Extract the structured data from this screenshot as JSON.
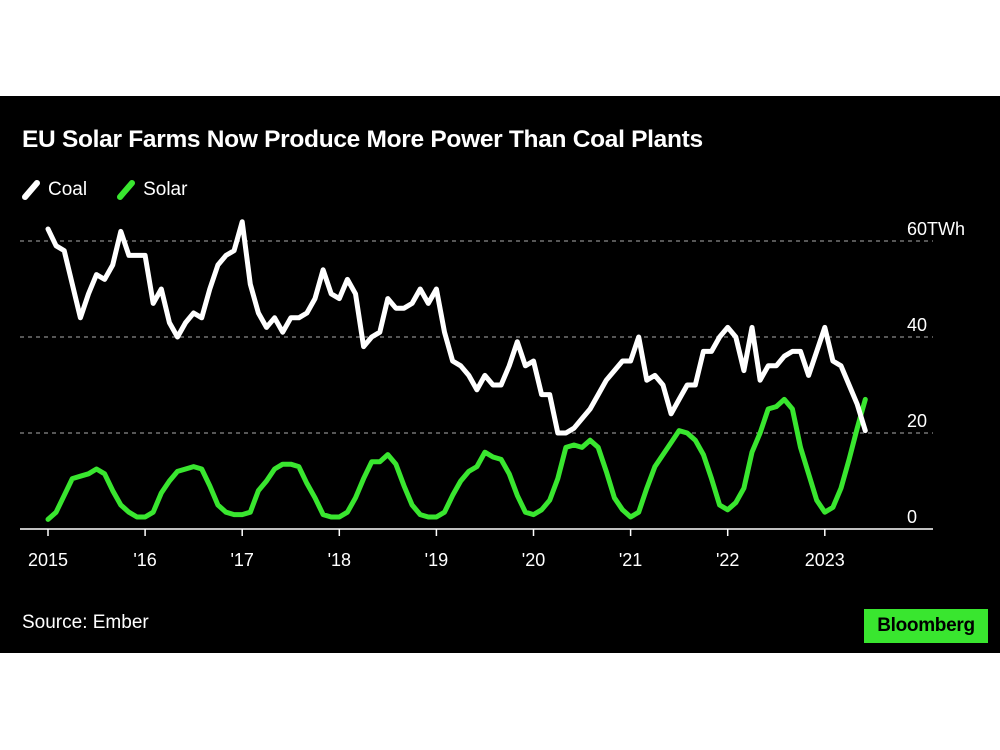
{
  "chart_data": {
    "type": "line",
    "title": "EU Solar Farms Now Produce More Power Than Coal Plants",
    "source": "Source: Ember",
    "brand": "Bloomberg",
    "unit": "TWh",
    "ylim": [
      0,
      60
    ],
    "yticks": [
      {
        "value": 0,
        "label": "0"
      },
      {
        "value": 20,
        "label": "20"
      },
      {
        "value": 40,
        "label": "40"
      },
      {
        "value": 60,
        "label": "60"
      }
    ],
    "xticks": [
      {
        "value": 2015,
        "label": "2015"
      },
      {
        "value": 2016,
        "label": "'16"
      },
      {
        "value": 2017,
        "label": "'17"
      },
      {
        "value": 2018,
        "label": "'18"
      },
      {
        "value": 2019,
        "label": "'19"
      },
      {
        "value": 2020,
        "label": "'20"
      },
      {
        "value": 2021,
        "label": "'21"
      },
      {
        "value": 2022,
        "label": "'22"
      },
      {
        "value": 2023,
        "label": "2023"
      }
    ],
    "grid": true,
    "legend_position": "top-left",
    "x_start": "2015-01",
    "x_step": "month",
    "series": [
      {
        "name": "Coal",
        "color": "#ffffff",
        "values": [
          62.5,
          59,
          58,
          51,
          44,
          49,
          53,
          52,
          55,
          62,
          57,
          57,
          57,
          47,
          50,
          43,
          40,
          43,
          45,
          44,
          50,
          55,
          57,
          58,
          64,
          51,
          45,
          42,
          44,
          41,
          44,
          44,
          45,
          48,
          54,
          49,
          48,
          52,
          49,
          38,
          40,
          41,
          48,
          46,
          46,
          47,
          50,
          47,
          50,
          41,
          35,
          34,
          32,
          29,
          32,
          30,
          30,
          34,
          39,
          34,
          35,
          28,
          28,
          20,
          20,
          21,
          23,
          25,
          28,
          31,
          33,
          35,
          35,
          40,
          31,
          32,
          30,
          24,
          27,
          30,
          30,
          37,
          37,
          40,
          42,
          40,
          33,
          42,
          31,
          34,
          34,
          36,
          37,
          37,
          32,
          37,
          42,
          35,
          34,
          30,
          26,
          20.5
        ]
      },
      {
        "name": "Solar",
        "color": "#39e62f",
        "values": [
          2,
          3.5,
          7,
          10.5,
          11,
          11.5,
          12.5,
          11.5,
          8,
          5,
          3.5,
          2.5,
          2.5,
          3.5,
          7.5,
          10,
          12,
          12.5,
          13,
          12.5,
          9,
          5,
          3.5,
          3,
          3,
          3.5,
          8,
          10,
          12.5,
          13.5,
          13.5,
          13,
          9.5,
          6.5,
          3,
          2.5,
          2.5,
          3.5,
          6.5,
          10.5,
          14,
          14,
          15.5,
          13.5,
          9,
          5,
          3,
          2.5,
          2.5,
          3.5,
          7,
          10,
          12,
          13,
          16,
          15,
          14.5,
          11.5,
          7,
          3.5,
          3,
          4,
          6,
          10.5,
          17,
          17.5,
          17,
          18.5,
          17,
          12,
          6.5,
          4,
          2.5,
          3.5,
          8.5,
          13,
          15.5,
          18,
          20.5,
          20,
          18.5,
          15.5,
          10.5,
          5,
          4,
          5.5,
          8.5,
          16,
          20,
          25,
          25.5,
          27,
          25,
          17,
          11.5,
          6,
          3.5,
          4.5,
          8.5,
          14.5,
          21,
          27
        ]
      }
    ]
  },
  "legend": [
    {
      "label": "Coal",
      "color": "#ffffff"
    },
    {
      "label": "Solar",
      "color": "#39e62f"
    }
  ]
}
